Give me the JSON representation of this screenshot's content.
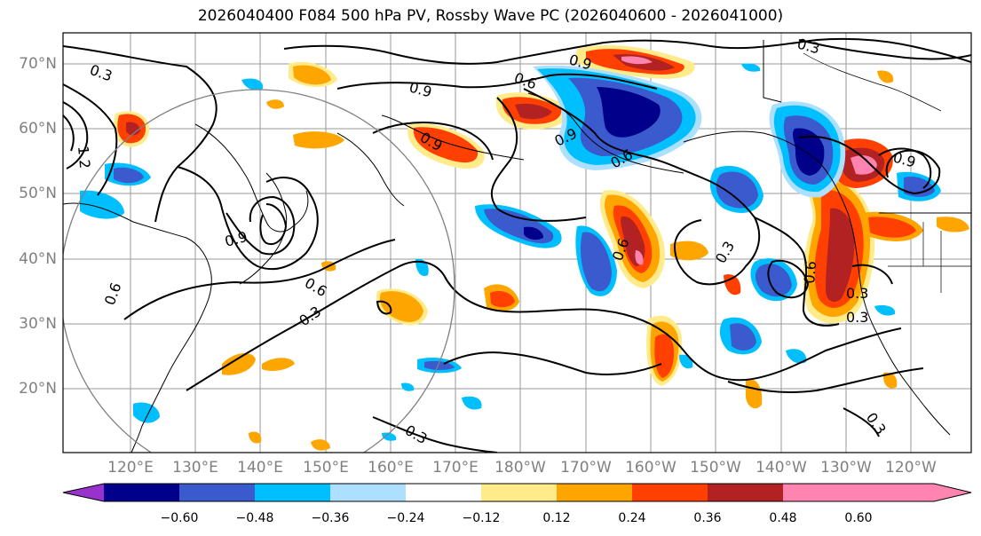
{
  "title": "2026040400 F084 500 hPa PV, Rossby Wave PC (2026040600 - 2026041000)",
  "lat_labels": [
    "70°N",
    "60°N",
    "50°N",
    "40°N",
    "30°N",
    "20°N"
  ],
  "lon_labels": [
    "120°E",
    "130°E",
    "140°E",
    "150°E",
    "160°E",
    "170°E",
    "180°W",
    "170°W",
    "160°W",
    "150°W",
    "140°W",
    "130°W",
    "120°W"
  ],
  "colorbar": {
    "ticks": [
      "−0.60",
      "−0.48",
      "−0.36",
      "−0.24",
      "−0.12",
      "0.12",
      "0.24",
      "0.36",
      "0.48",
      "0.60"
    ],
    "colors": [
      "#9932CC",
      "#00008B",
      "#3A5ACD",
      "#00BFFF",
      "#ADDFFF",
      "#FFFFFF",
      "#FFEB8A",
      "#FFA500",
      "#FF4000",
      "#B22222",
      "#FF85B0",
      "#FF85B0"
    ]
  },
  "contour_labels": [
    "0.3",
    "0.3",
    "0.3",
    "0.3",
    "0.3",
    "0.3",
    "0.3",
    "0.3",
    "0.6",
    "0.6",
    "0.6",
    "0.6",
    "0.6",
    "0.6",
    "0.9",
    "0.9",
    "0.9",
    "0.9",
    "0.9",
    "0.9",
    "1.2"
  ]
}
